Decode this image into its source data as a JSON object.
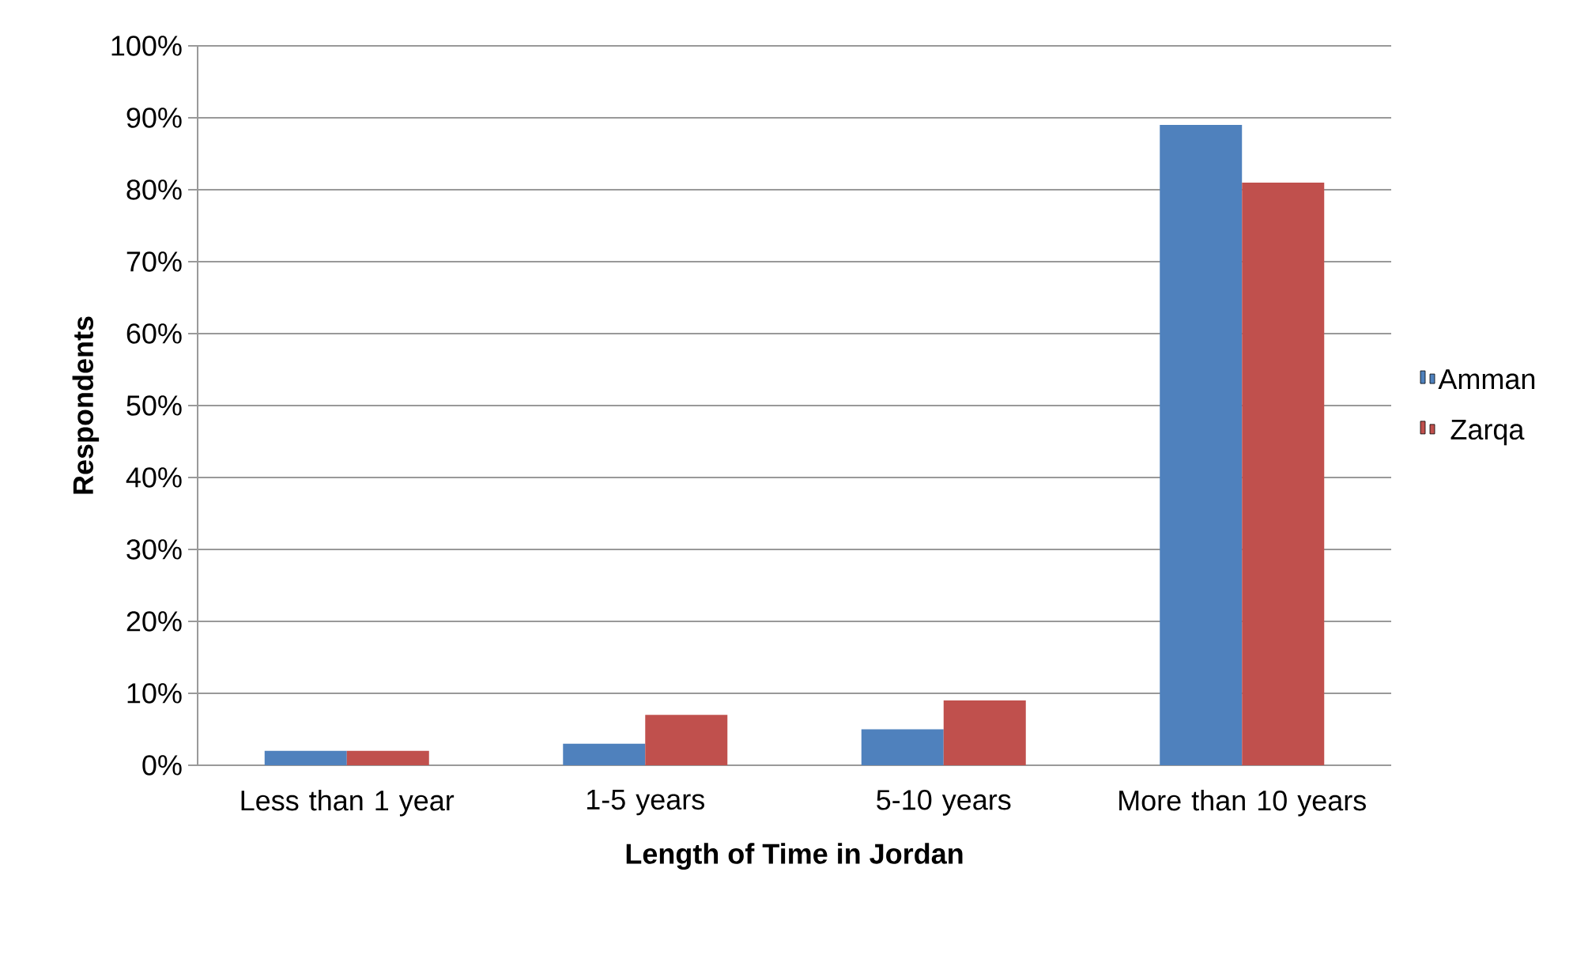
{
  "chart_data": {
    "type": "bar",
    "xlabel": "Length of Time in Jordan",
    "ylabel": "Respondents",
    "categories": [
      "Less than 1 year",
      "1-5 years",
      "5-10 years",
      "More than 10 years"
    ],
    "series": [
      {
        "name": "Amman",
        "color": "#4f81bd",
        "values": [
          2,
          3,
          5,
          89
        ]
      },
      {
        "name": "Zarqa",
        "color": "#c0504d",
        "values": [
          2,
          7,
          9,
          81
        ]
      }
    ],
    "ylim": [
      0,
      100
    ],
    "yticks": [
      {
        "value": 0,
        "label": "0%"
      },
      {
        "value": 10,
        "label": "10%"
      },
      {
        "value": 20,
        "label": "20%"
      },
      {
        "value": 30,
        "label": "30%"
      },
      {
        "value": 40,
        "label": "40%"
      },
      {
        "value": 50,
        "label": "50%"
      },
      {
        "value": 60,
        "label": "60%"
      },
      {
        "value": 70,
        "label": "70%"
      },
      {
        "value": 80,
        "label": "80%"
      },
      {
        "value": 90,
        "label": "90%"
      },
      {
        "value": 100,
        "label": "100%"
      }
    ],
    "grid": "y",
    "legend": "right"
  }
}
